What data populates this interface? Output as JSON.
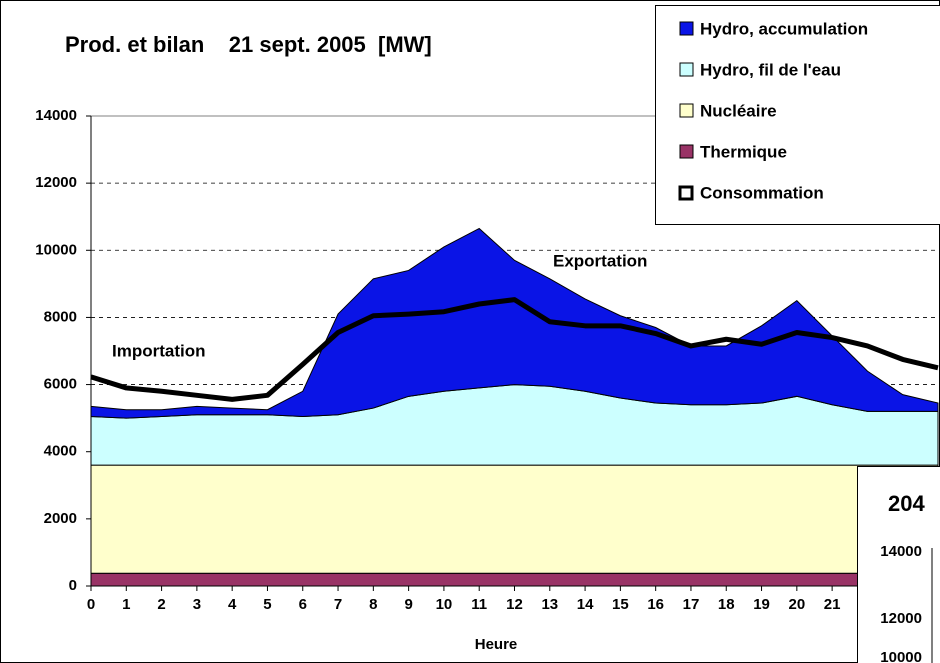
{
  "chart_data": {
    "type": "area",
    "title": "Prod. et bilan    21 sept. 2005  [MW]",
    "x_label": "Heure",
    "annotations": [
      "Importation",
      "Exportation"
    ],
    "x": [
      0,
      1,
      2,
      3,
      4,
      5,
      6,
      7,
      8,
      9,
      10,
      11,
      12,
      13,
      14,
      15,
      16,
      17,
      18,
      19,
      20,
      21,
      22,
      23,
      24
    ],
    "xlim": [
      0,
      24
    ],
    "xticks": [
      0,
      1,
      2,
      3,
      4,
      5,
      6,
      7,
      8,
      9,
      10,
      11,
      12,
      13,
      14,
      15,
      16,
      17,
      18,
      19,
      20,
      21
    ],
    "ylim": [
      0,
      14000
    ],
    "yticks": [
      0,
      2000,
      4000,
      6000,
      8000,
      10000,
      12000,
      14000
    ],
    "grid": true,
    "stacked": true,
    "series": [
      {
        "name": "Hydro, accumulation",
        "type": "area",
        "color": "#0a14e6",
        "values": [
          300,
          250,
          200,
          250,
          200,
          150,
          750,
          3000,
          3850,
          3750,
          4300,
          4750,
          3700,
          3200,
          2750,
          2450,
          2250,
          1750,
          1750,
          2300,
          2850,
          2050,
          1200,
          500,
          250
        ]
      },
      {
        "name": "Hydro, fil de l'eau",
        "type": "area",
        "color": "#ccffff",
        "values": [
          1450,
          1400,
          1450,
          1500,
          1500,
          1500,
          1450,
          1500,
          1700,
          2050,
          2200,
          2300,
          2400,
          2350,
          2200,
          2000,
          1850,
          1800,
          1800,
          1850,
          2050,
          1800,
          1600,
          1600,
          1600
        ]
      },
      {
        "name": "Nucléaire",
        "type": "area",
        "color": "#ffffcc",
        "values": [
          3220,
          3220,
          3220,
          3220,
          3220,
          3220,
          3220,
          3220,
          3220,
          3220,
          3220,
          3220,
          3220,
          3220,
          3220,
          3220,
          3220,
          3220,
          3220,
          3220,
          3220,
          3220,
          3220,
          3220,
          3220
        ]
      },
      {
        "name": "Thermique",
        "type": "area",
        "color": "#993366",
        "values": [
          380,
          380,
          380,
          380,
          380,
          380,
          380,
          380,
          380,
          380,
          380,
          380,
          380,
          380,
          380,
          380,
          380,
          380,
          380,
          380,
          380,
          380,
          380,
          380,
          380
        ]
      },
      {
        "name": "Consommation",
        "type": "line",
        "color": "#000000",
        "values": [
          6230,
          5900,
          5800,
          5680,
          5560,
          5680,
          6600,
          7550,
          8050,
          8100,
          8170,
          8400,
          8530,
          7870,
          7750,
          7750,
          7520,
          7150,
          7350,
          7200,
          7550,
          7400,
          7150,
          6750,
          6500
        ]
      }
    ]
  },
  "overlay": {
    "title": "204",
    "tick_labels": [
      "14000",
      "12000",
      "10000"
    ]
  }
}
